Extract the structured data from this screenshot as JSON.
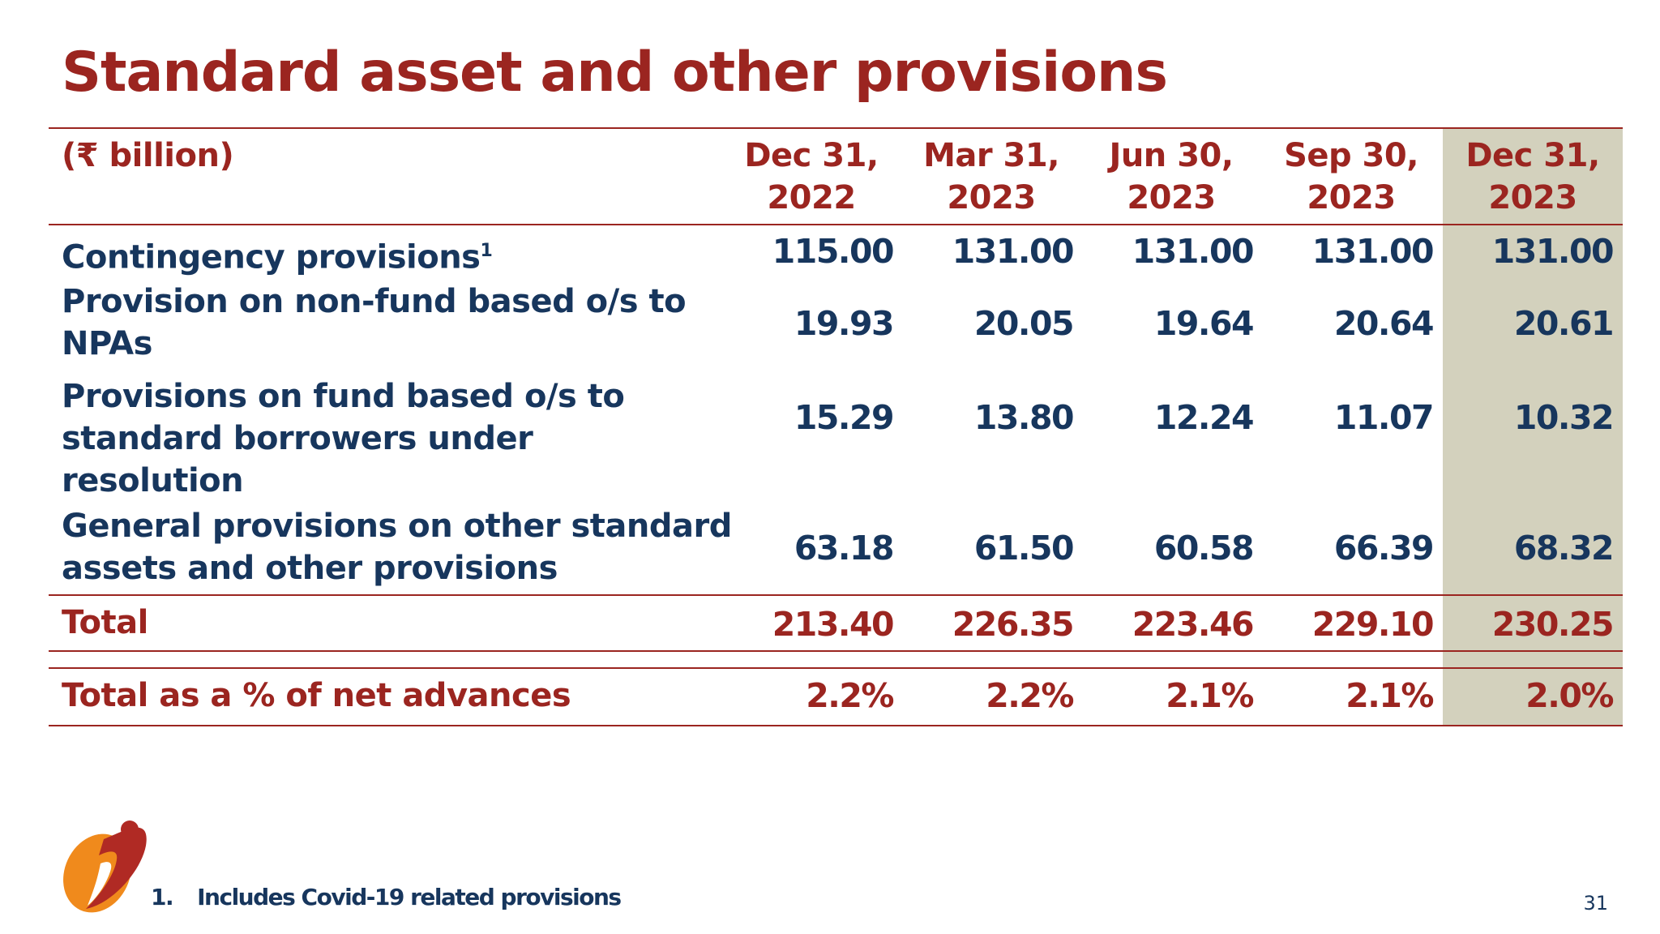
{
  "title": "Standard asset and other provisions",
  "table": {
    "unit_label": "(₹ billion)",
    "columns": [
      {
        "line1": "Dec 31,",
        "line2": "2022"
      },
      {
        "line1": "Mar 31,",
        "line2": "2023"
      },
      {
        "line1": "Jun 30,",
        "line2": "2023"
      },
      {
        "line1": "Sep 30,",
        "line2": "2023"
      },
      {
        "line1": "Dec 31,",
        "line2": "2023"
      }
    ],
    "highlight_color": "#d3d1bd",
    "rows": [
      {
        "label": "Contingency provisions",
        "superscript": "1",
        "values": [
          "115.00",
          "131.00",
          "131.00",
          "131.00",
          "131.00"
        ]
      },
      {
        "label_lines": [
          "Provision on non-fund based o/s to",
          "NPAs"
        ],
        "values": [
          "19.93",
          "20.05",
          "19.64",
          "20.64",
          "20.61"
        ]
      },
      {
        "label_lines": [
          "Provisions on fund based o/s to",
          "standard borrowers under",
          "resolution"
        ],
        "values": [
          "15.29",
          "13.80",
          "12.24",
          "11.07",
          "10.32"
        ]
      },
      {
        "label_lines": [
          "General provisions on other standard",
          "assets and other provisions"
        ],
        "values": [
          "63.18",
          "61.50",
          "60.58",
          "66.39",
          "68.32"
        ]
      }
    ],
    "total": {
      "label": "Total",
      "values": [
        "213.40",
        "226.35",
        "223.46",
        "229.10",
        "230.25"
      ]
    },
    "total_pct": {
      "label": "Total as a % of net advances",
      "values": [
        "2.2%",
        "2.2%",
        "2.1%",
        "2.1%",
        "2.0%"
      ]
    }
  },
  "footnote": {
    "number": "1.",
    "text": "Includes Covid-19 related provisions"
  },
  "page_number": "31",
  "colors": {
    "title_red": "#9b2520",
    "body_navy": "#17365d",
    "logo_red": "#b02a24",
    "logo_orange": "#f08a1c"
  },
  "logo": {
    "icon": "icici-logo-icon"
  }
}
